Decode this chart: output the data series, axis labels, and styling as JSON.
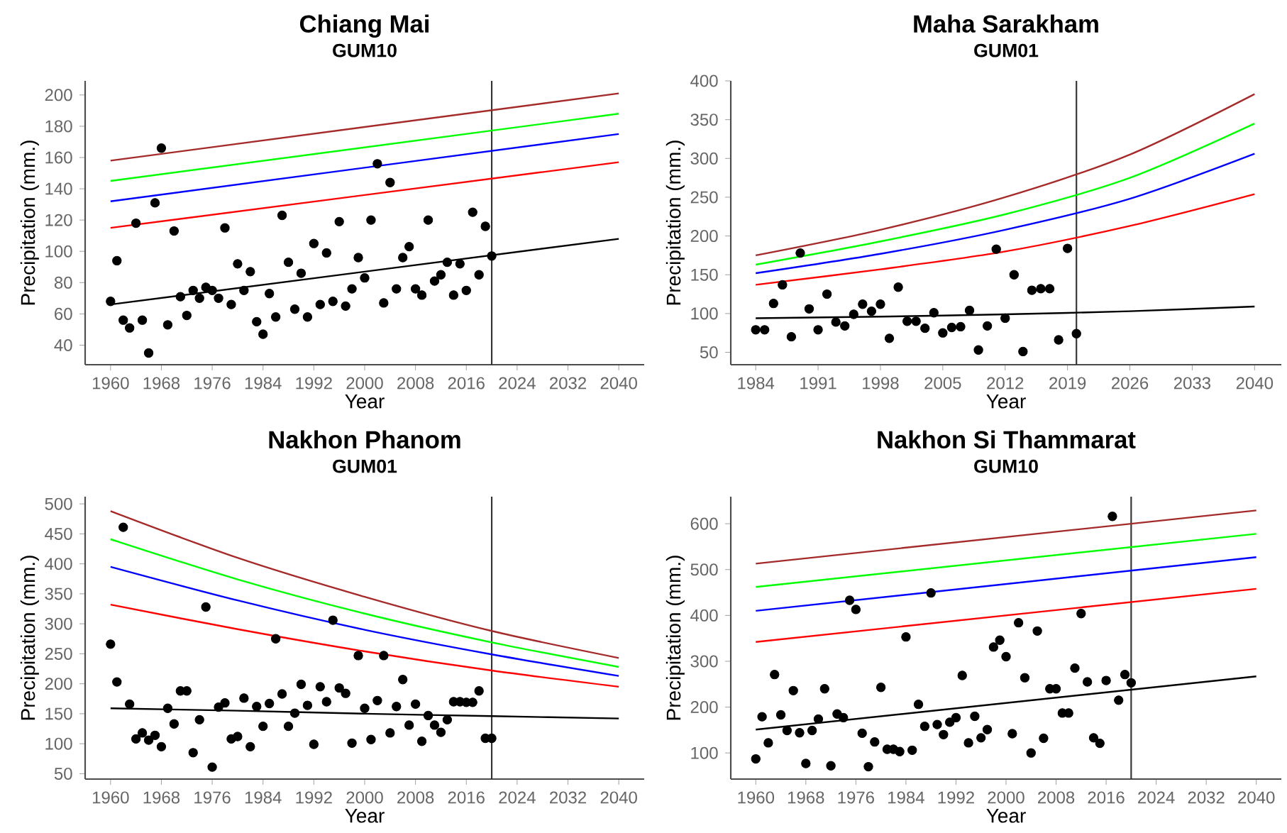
{
  "chart_data": [
    {
      "type": "line",
      "title": "Chiang Mai",
      "subtitle": "GUM10",
      "xlabel": "Year",
      "ylabel": "Precipitation (mm.)",
      "xlim": [
        1956,
        2044
      ],
      "xticks": [
        1960,
        1968,
        1976,
        1984,
        1992,
        2000,
        2008,
        2016,
        2024,
        2032,
        2040
      ],
      "ylim": [
        27.5,
        209
      ],
      "yticks": [
        40,
        60,
        80,
        100,
        120,
        140,
        160,
        180,
        200
      ],
      "ref_lines": [
        {
          "axis": "x",
          "value": 2020,
          "color": "#333333"
        }
      ],
      "series": [
        {
          "color": "#a52a2a",
          "x": [
            1960,
            2040
          ],
          "values": [
            158,
            201
          ]
        },
        {
          "color": "#00ff00",
          "x": [
            1960,
            2040
          ],
          "values": [
            145,
            188
          ]
        },
        {
          "color": "#0000ff",
          "x": [
            1960,
            2040
          ],
          "values": [
            132,
            175
          ]
        },
        {
          "color": "#ff0000",
          "x": [
            1960,
            2040
          ],
          "values": [
            115,
            157
          ]
        },
        {
          "color": "#000000",
          "x": [
            1960,
            2040
          ],
          "values": [
            66,
            108
          ]
        },
        {
          "type": "scatter",
          "marker": "circle",
          "color": "#000000",
          "x": [
            1960,
            1961,
            1962,
            1963,
            1964,
            1965,
            1966,
            1967,
            1968,
            1969,
            1970,
            1971,
            1972,
            1973,
            1974,
            1975,
            1976,
            1977,
            1978,
            1979,
            1980,
            1981,
            1982,
            1983,
            1984,
            1985,
            1986,
            1987,
            1988,
            1989,
            1990,
            1991,
            1992,
            1993,
            1994,
            1995,
            1996,
            1997,
            1998,
            1999,
            2000,
            2001,
            2002,
            2003,
            2004,
            2005,
            2006,
            2007,
            2008,
            2009,
            2010,
            2011,
            2012,
            2013,
            2014,
            2015,
            2016,
            2017,
            2018,
            2019,
            2020
          ],
          "values": [
            68,
            94,
            56,
            51,
            118,
            56,
            35,
            131,
            166,
            53,
            113,
            71,
            59,
            75,
            70,
            77,
            75,
            70,
            115,
            66,
            92,
            75,
            87,
            55,
            47,
            73,
            58,
            123,
            93,
            63,
            86,
            58,
            105,
            66,
            99,
            68,
            119,
            65,
            76,
            96,
            83,
            120,
            156,
            67,
            144,
            76,
            96,
            103,
            76,
            72,
            120,
            81,
            85,
            93,
            72,
            92,
            75,
            125,
            85,
            116,
            97
          ]
        }
      ]
    },
    {
      "type": "line",
      "title": "Maha Sarakham",
      "subtitle": "GUM01",
      "xlabel": "Year",
      "ylabel": "Precipitation (mm.)",
      "xlim": [
        1981.2,
        2043
      ],
      "xticks": [
        1984,
        1991,
        1998,
        2005,
        2012,
        2019,
        2026,
        2033,
        2040
      ],
      "ylim": [
        34,
        400
      ],
      "yticks": [
        50,
        100,
        150,
        200,
        250,
        300,
        350,
        400
      ],
      "ref_lines": [
        {
          "axis": "x",
          "value": 2020,
          "color": "#333333"
        }
      ],
      "series": [
        {
          "color": "#a52a2a",
          "x": [
            1984,
            1998,
            2012,
            2026,
            2040
          ],
          "values": [
            175,
            208,
            250,
            305,
            383
          ]
        },
        {
          "color": "#00ff00",
          "x": [
            1984,
            1998,
            2012,
            2026,
            2040
          ],
          "values": [
            163,
            193,
            228,
            275,
            345
          ]
        },
        {
          "color": "#0000ff",
          "x": [
            1984,
            1998,
            2012,
            2026,
            2040
          ],
          "values": [
            152,
            177,
            208,
            248,
            306
          ]
        },
        {
          "color": "#ff0000",
          "x": [
            1984,
            1998,
            2012,
            2026,
            2040
          ],
          "values": [
            137,
            157,
            180,
            213,
            254
          ]
        },
        {
          "color": "#000000",
          "x": [
            1984,
            1998,
            2012,
            2026,
            2040
          ],
          "values": [
            94,
            96,
            99,
            103,
            109
          ]
        },
        {
          "type": "scatter",
          "marker": "circle",
          "color": "#000000",
          "x": [
            1984,
            1985,
            1986,
            1987,
            1988,
            1989,
            1990,
            1991,
            1992,
            1993,
            1994,
            1995,
            1996,
            1997,
            1998,
            1999,
            2000,
            2001,
            2002,
            2003,
            2004,
            2005,
            2006,
            2007,
            2008,
            2009,
            2010,
            2011,
            2012,
            2013,
            2014,
            2015,
            2016,
            2017,
            2018,
            2019,
            2020
          ],
          "values": [
            79,
            79,
            113,
            137,
            70,
            178,
            106,
            79,
            125,
            89,
            84,
            99,
            112,
            103,
            112,
            68,
            134,
            90,
            90,
            81,
            101,
            75,
            82,
            83,
            104,
            53,
            84,
            183,
            94,
            150,
            51,
            130,
            132,
            132,
            66,
            184,
            74
          ]
        }
      ]
    },
    {
      "type": "line",
      "title": "Nakhon Phanom",
      "subtitle": "GUM01",
      "xlabel": "Year",
      "ylabel": "Precipitation (mm.)",
      "xlim": [
        1956,
        2044
      ],
      "xticks": [
        1960,
        1968,
        1976,
        1984,
        1992,
        2000,
        2008,
        2016,
        2024,
        2032,
        2040
      ],
      "ylim": [
        41,
        512
      ],
      "yticks": [
        50,
        100,
        150,
        200,
        250,
        300,
        350,
        400,
        450,
        500
      ],
      "ref_lines": [
        {
          "axis": "x",
          "value": 2020,
          "color": "#333333"
        }
      ],
      "series": [
        {
          "color": "#a52a2a",
          "x": [
            1960,
            1980,
            2000,
            2020,
            2040
          ],
          "values": [
            488,
            410,
            345,
            288,
            243
          ]
        },
        {
          "color": "#00ff00",
          "x": [
            1960,
            1980,
            2000,
            2020,
            2040
          ],
          "values": [
            441,
            374,
            317,
            269,
            228
          ]
        },
        {
          "color": "#0000ff",
          "x": [
            1960,
            1980,
            2000,
            2020,
            2040
          ],
          "values": [
            395,
            339,
            290,
            249,
            213
          ]
        },
        {
          "color": "#ff0000",
          "x": [
            1960,
            1980,
            2000,
            2020,
            2040
          ],
          "values": [
            332,
            291,
            254,
            222,
            195
          ]
        },
        {
          "color": "#000000",
          "x": [
            1960,
            1980,
            2000,
            2020,
            2040
          ],
          "values": [
            159,
            155,
            150,
            146,
            142
          ]
        },
        {
          "type": "scatter",
          "marker": "circle",
          "color": "#000000",
          "x": [
            1960,
            1961,
            1962,
            1963,
            1964,
            1965,
            1966,
            1967,
            1968,
            1969,
            1970,
            1971,
            1972,
            1973,
            1974,
            1975,
            1976,
            1977,
            1978,
            1979,
            1980,
            1981,
            1982,
            1983,
            1984,
            1985,
            1986,
            1987,
            1988,
            1989,
            1990,
            1991,
            1992,
            1993,
            1994,
            1995,
            1996,
            1997,
            1998,
            1999,
            2000,
            2001,
            2002,
            2003,
            2004,
            2005,
            2006,
            2007,
            2008,
            2009,
            2010,
            2011,
            2012,
            2013,
            2014,
            2015,
            2016,
            2017,
            2018,
            2019,
            2020
          ],
          "values": [
            266,
            203,
            461,
            166,
            108,
            118,
            106,
            114,
            95,
            159,
            133,
            188,
            188,
            85,
            140,
            328,
            61,
            161,
            168,
            108,
            112,
            176,
            95,
            162,
            129,
            167,
            275,
            183,
            129,
            151,
            199,
            164,
            99,
            195,
            170,
            306,
            193,
            184,
            101,
            247,
            159,
            107,
            172,
            247,
            118,
            162,
            207,
            131,
            166,
            104,
            147,
            131,
            119,
            140,
            170,
            170,
            169,
            169,
            188,
            109,
            109
          ]
        }
      ]
    },
    {
      "type": "line",
      "title": "Nakhon Si Thammarat",
      "subtitle": "GUM10",
      "xlabel": "Year",
      "ylabel": "Precipitation (mm.)",
      "xlim": [
        1956,
        2044
      ],
      "xticks": [
        1960,
        1968,
        1976,
        1984,
        1992,
        2000,
        2008,
        2016,
        2024,
        2032,
        2040
      ],
      "ylim": [
        43,
        659
      ],
      "yticks": [
        100,
        200,
        300,
        400,
        500,
        600
      ],
      "ref_lines": [
        {
          "axis": "x",
          "value": 2020,
          "color": "#333333"
        }
      ],
      "series": [
        {
          "color": "#a52a2a",
          "x": [
            1960,
            2040
          ],
          "values": [
            513,
            629
          ]
        },
        {
          "color": "#00ff00",
          "x": [
            1960,
            2040
          ],
          "values": [
            462,
            578
          ]
        },
        {
          "color": "#0000ff",
          "x": [
            1960,
            2040
          ],
          "values": [
            410,
            527
          ]
        },
        {
          "color": "#ff0000",
          "x": [
            1960,
            2040
          ],
          "values": [
            342,
            458
          ]
        },
        {
          "color": "#000000",
          "x": [
            1960,
            2040
          ],
          "values": [
            151,
            267
          ]
        },
        {
          "type": "scatter",
          "marker": "circle",
          "color": "#000000",
          "x": [
            1960,
            1961,
            1962,
            1963,
            1964,
            1965,
            1966,
            1967,
            1968,
            1969,
            1970,
            1971,
            1972,
            1973,
            1974,
            1975,
            1976,
            1977,
            1978,
            1979,
            1980,
            1981,
            1982,
            1983,
            1984,
            1985,
            1986,
            1987,
            1988,
            1989,
            1990,
            1991,
            1992,
            1993,
            1994,
            1995,
            1996,
            1997,
            1998,
            1999,
            2000,
            2001,
            2002,
            2003,
            2004,
            2005,
            2006,
            2007,
            2008,
            2009,
            2010,
            2011,
            2012,
            2013,
            2014,
            2015,
            2016,
            2017,
            2018,
            2019,
            2020
          ],
          "values": [
            87,
            179,
            122,
            271,
            183,
            149,
            236,
            144,
            77,
            149,
            174,
            240,
            72,
            185,
            177,
            433,
            413,
            143,
            70,
            124,
            243,
            108,
            108,
            103,
            353,
            106,
            206,
            158,
            449,
            162,
            140,
            167,
            177,
            269,
            122,
            180,
            133,
            151,
            331,
            346,
            310,
            142,
            384,
            264,
            100,
            366,
            132,
            240,
            240,
            187,
            187,
            285,
            404,
            255,
            133,
            121,
            258,
            616,
            215,
            271,
            253
          ]
        }
      ]
    }
  ]
}
